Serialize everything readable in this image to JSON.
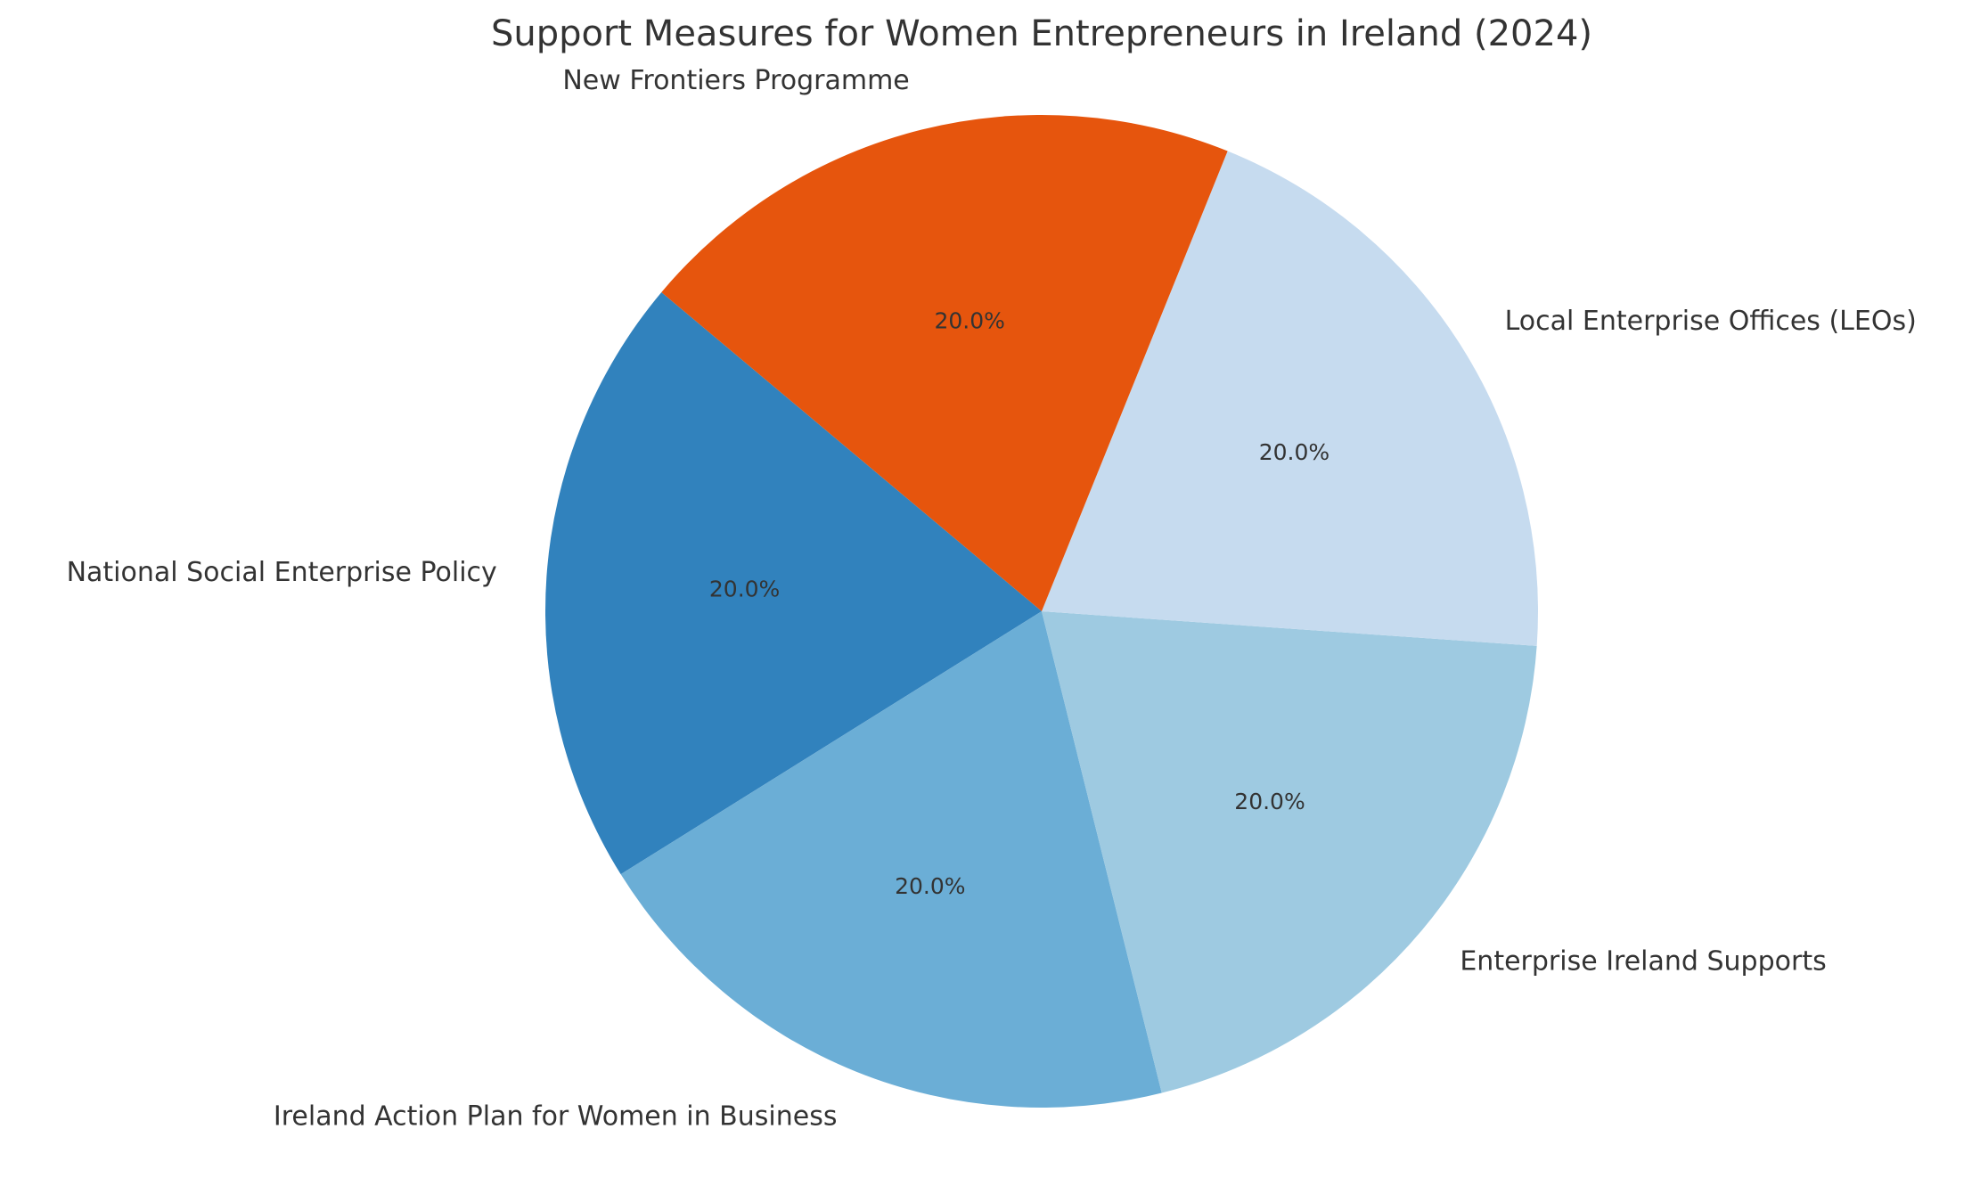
{
  "chart_data": {
    "type": "pie",
    "title": "Support Measures for Women Entrepreneurs in Ireland (2024)",
    "categories": [
      "National Social Enterprise Policy",
      "Ireland Action Plan for Women in Business",
      "Enterprise Ireland Supports",
      "Local Enterprise Offices (LEOs)",
      "New Frontiers Programme"
    ],
    "values": [
      20,
      20,
      20,
      20,
      20
    ],
    "value_labels": [
      "20.0%",
      "20.0%",
      "20.0%",
      "20.0%",
      "20.0%"
    ],
    "colors": [
      "#3182bd",
      "#6baed6",
      "#9ecae1",
      "#c6dbef",
      "#e6550d"
    ],
    "startangle": 140
  }
}
